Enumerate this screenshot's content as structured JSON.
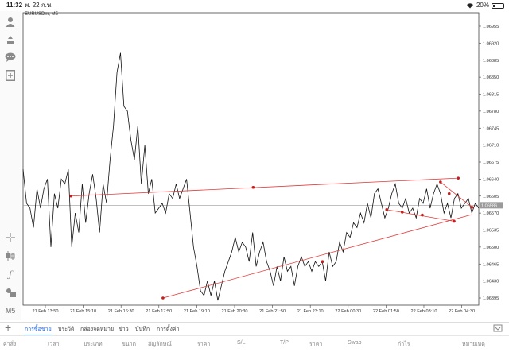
{
  "status_bar": {
    "time": "11:32",
    "date": "พ. 22 ก.พ.",
    "battery_text": "20%",
    "battery_level": 0.2
  },
  "chart": {
    "symbol": "EURUSDm, M5",
    "current_price": "1.06586",
    "line_color": "#111111",
    "annotation_color": "#e23b3b"
  },
  "chart_data": {
    "type": "line",
    "title": "EURUSDm, M5",
    "x_ticks": [
      "21 Feb 13:50",
      "21 Feb 15:10",
      "21 Feb 16:30",
      "21 Feb 17:50",
      "21 Feb 19:10",
      "21 Feb 20:30",
      "21 Feb 21:50",
      "21 Feb 23:10",
      "22 Feb 00:30",
      "22 Feb 01:50",
      "22 Feb 03:10",
      "22 Feb 04:30"
    ],
    "y_ticks": [
      "1.06955",
      "1.06920",
      "1.06885",
      "1.06850",
      "1.06815",
      "1.06780",
      "1.06745",
      "1.06710",
      "1.06675",
      "1.06640",
      "1.06605",
      "1.06570",
      "1.06535",
      "1.06500",
      "1.06465",
      "1.06430",
      "1.06395"
    ],
    "ylim": [
      1.0638,
      1.0697
    ],
    "grid": false,
    "last_price": 1.06586,
    "values": [
      1.0666,
      1.0659,
      1.0658,
      1.0654,
      1.0662,
      1.0658,
      1.0662,
      1.0664,
      1.065,
      1.0661,
      1.0658,
      1.0664,
      1.0663,
      1.0666,
      1.065,
      1.0657,
      1.0653,
      1.0663,
      1.0655,
      1.0661,
      1.0665,
      1.066,
      1.0653,
      1.0663,
      1.0659,
      1.0668,
      1.0675,
      1.0686,
      1.069,
      1.0679,
      1.0678,
      1.0672,
      1.0668,
      1.0675,
      1.0663,
      1.0671,
      1.0661,
      1.0664,
      1.0657,
      1.0658,
      1.0659,
      1.0657,
      1.0661,
      1.066,
      1.0663,
      1.066,
      1.0662,
      1.0664,
      1.0657,
      1.065,
      1.0646,
      1.0641,
      1.064,
      1.0643,
      1.064,
      1.0643,
      1.0639,
      1.0642,
      1.0645,
      1.0647,
      1.0649,
      1.0652,
      1.0649,
      1.0651,
      1.065,
      1.0647,
      1.0653,
      1.0646,
      1.0649,
      1.0651,
      1.0647,
      1.0645,
      1.0642,
      1.0646,
      1.0643,
      1.0648,
      1.0645,
      1.0646,
      1.0642,
      1.0646,
      1.0648,
      1.0646,
      1.0647,
      1.0645,
      1.0647,
      1.0646,
      1.0647,
      1.0643,
      1.0649,
      1.0646,
      1.0647,
      1.0651,
      1.0649,
      1.0653,
      1.0652,
      1.0655,
      1.0654,
      1.0657,
      1.0655,
      1.0659,
      1.0656,
      1.0661,
      1.0662,
      1.0659,
      1.0656,
      1.0658,
      1.0661,
      1.0663,
      1.0659,
      1.0658,
      1.066,
      1.0657,
      1.0658,
      1.0656,
      1.066,
      1.0659,
      1.0662,
      1.0658,
      1.0661,
      1.0663,
      1.0661,
      1.0657,
      1.0659,
      1.0656,
      1.066,
      1.0661,
      1.0658,
      1.0659,
      1.066,
      1.0657,
      1.0659,
      1.0658
    ]
  },
  "annotations": {
    "lines": [
      {
        "from": [
          1.06605,
          0.105
        ],
        "to": [
          1.06642,
          0.955
        ],
        "kind": "resistance"
      },
      {
        "from": [
          1.06395,
          0.307
        ],
        "to": [
          1.06567,
          0.985
        ],
        "kind": "support"
      },
      {
        "from": [
          1.06634,
          0.916
        ],
        "to": [
          1.06582,
          0.985
        ],
        "kind": "wedge-top"
      },
      {
        "from": [
          1.06577,
          0.798
        ],
        "to": [
          1.06553,
          0.946
        ],
        "kind": "wedge-bottom"
      }
    ],
    "points": [
      [
        1.06605,
        0.105
      ],
      [
        1.06623,
        0.505
      ],
      [
        1.06642,
        0.955
      ],
      [
        1.06395,
        0.307
      ],
      [
        1.0647,
        0.657
      ],
      [
        1.06634,
        0.916
      ],
      [
        1.0661,
        0.935
      ],
      [
        1.06582,
        0.985
      ],
      [
        1.06577,
        0.798
      ],
      [
        1.06572,
        0.832
      ],
      [
        1.06566,
        0.876
      ],
      [
        1.06553,
        0.946
      ]
    ]
  },
  "toolbar": {
    "tools": [
      "person-icon",
      "trade-icon",
      "chat-icon",
      "new-order-icon",
      "crosshair-icon",
      "candles-icon",
      "function-icon",
      "objects-icon"
    ],
    "timeframe": "M5"
  },
  "tabs": [
    "การซื้อขาย",
    "ประวัติ",
    "กล่องจดหมาย",
    "ข่าว",
    "บันทึก",
    "การตั้งค่า"
  ],
  "columns": [
    "คำสั่ง",
    "เวลา",
    "ประเภท",
    "ขนาด",
    "สัญลักษณ์",
    "ราคา",
    "S/L",
    "T/P",
    "ราคา",
    "Swap",
    "กำไร",
    "หมายเหตุ"
  ]
}
